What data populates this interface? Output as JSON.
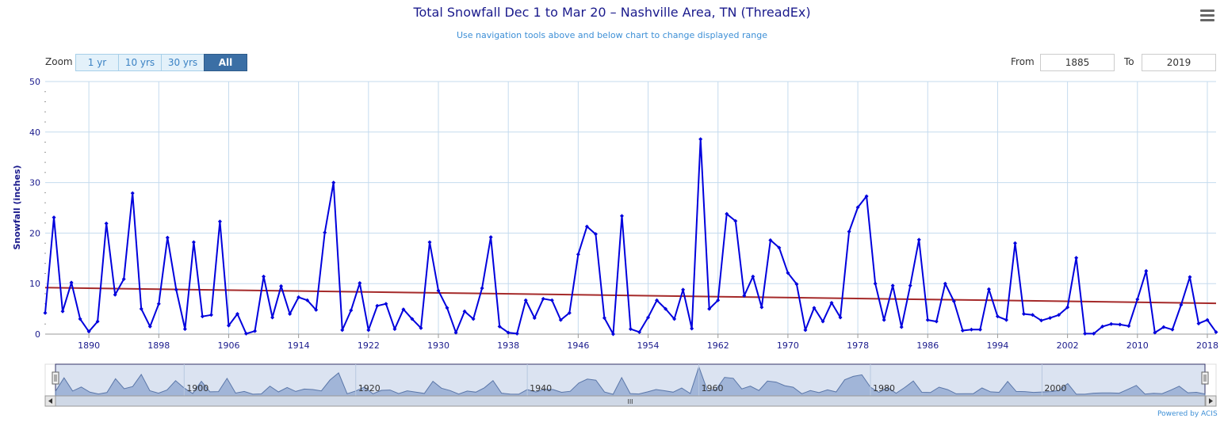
{
  "header": {
    "title": "Total Snowfall Dec 1 to Mar 20 – Nashville Area, TN (ThreadEx)",
    "subtitle": "Use navigation tools above and below chart to change displayed range",
    "menu_icon": "hamburger-menu-icon"
  },
  "zoom": {
    "label": "Zoom",
    "buttons": [
      "1 yr",
      "10 yrs",
      "30 yrs",
      "All"
    ],
    "active": "All"
  },
  "range": {
    "from_label": "From",
    "from_value": "1885",
    "to_label": "To",
    "to_value": "2019"
  },
  "navigator": {
    "labels": [
      "1900",
      "1920",
      "1940",
      "1960",
      "1980",
      "2000"
    ],
    "scrollbar_grip": "III"
  },
  "footer": {
    "credit": "Powered by ACIS"
  },
  "colors": {
    "series": "#0000dd",
    "trend": "#a52a2a",
    "grid": "#c5dbee",
    "navigator_fill": "#8da6cf"
  },
  "chart_data": {
    "type": "line",
    "title": "Total Snowfall Dec 1 to Mar 20 – Nashville Area, TN (ThreadEx)",
    "xlabel": "",
    "ylabel": "Snowfall (inches)",
    "xlim": [
      1885,
      2019
    ],
    "ylim": [
      0,
      50
    ],
    "yticks": [
      0,
      10,
      20,
      30,
      40,
      50
    ],
    "xticks": [
      1890,
      1898,
      1906,
      1914,
      1922,
      1930,
      1938,
      1946,
      1954,
      1962,
      1970,
      1978,
      1986,
      1994,
      2002,
      2010,
      2018
    ],
    "grid": true,
    "series": [
      {
        "type": "line",
        "x": [
          1885,
          1886,
          1887,
          1888,
          1889,
          1890,
          1891,
          1892,
          1893,
          1894,
          1895,
          1896,
          1897,
          1898,
          1899,
          1900,
          1901,
          1902,
          1903,
          1904,
          1905,
          1906,
          1907,
          1908,
          1909,
          1910,
          1911,
          1912,
          1913,
          1914,
          1915,
          1916,
          1917,
          1918,
          1919,
          1920,
          1921,
          1922,
          1923,
          1924,
          1925,
          1926,
          1927,
          1928,
          1929,
          1930,
          1931,
          1932,
          1933,
          1934,
          1935,
          1936,
          1937,
          1938,
          1939,
          1940,
          1941,
          1942,
          1943,
          1944,
          1945,
          1946,
          1947,
          1948,
          1949,
          1950,
          1951,
          1952,
          1953,
          1954,
          1955,
          1956,
          1957,
          1958,
          1959,
          1960,
          1961,
          1962,
          1963,
          1964,
          1965,
          1966,
          1967,
          1968,
          1969,
          1970,
          1971,
          1972,
          1973,
          1974,
          1975,
          1976,
          1977,
          1978,
          1979,
          1980,
          1981,
          1982,
          1983,
          1984,
          1985,
          1986,
          1987,
          1988,
          1989,
          1990,
          1991,
          1992,
          1993,
          1994,
          1995,
          1996,
          1997,
          1998,
          1999,
          2000,
          2001,
          2002,
          2003,
          2004,
          2005,
          2006,
          2007,
          2008,
          2009,
          2010,
          2011,
          2012,
          2013,
          2014,
          2015,
          2016,
          2017,
          2018,
          2019
        ],
        "values": [
          4.2,
          23.1,
          4.5,
          10.2,
          3.0,
          0.5,
          2.5,
          21.9,
          7.8,
          10.9,
          27.9,
          5.0,
          1.5,
          6.0,
          19.1,
          8.8,
          1.0,
          18.2,
          3.5,
          3.8,
          22.3,
          1.7,
          4.0,
          0.1,
          0.6,
          11.4,
          3.3,
          9.5,
          4.0,
          7.3,
          6.7,
          4.8,
          20.1,
          30.0,
          0.8,
          4.7,
          10.1,
          0.8,
          5.6,
          6.0,
          1.0,
          4.9,
          3.0,
          1.2,
          18.2,
          8.6,
          5.2,
          0.3,
          4.5,
          3.0,
          9.1,
          19.2,
          1.5,
          0.3,
          0.1,
          6.7,
          3.2,
          7.0,
          6.7,
          2.8,
          4.2,
          15.8,
          21.3,
          19.8,
          3.2,
          0.0,
          23.4,
          1.0,
          0.4,
          3.3,
          6.7,
          5.0,
          3.0,
          8.8,
          1.1,
          38.6,
          5.0,
          6.7,
          23.8,
          22.4,
          7.6,
          11.4,
          5.3,
          18.6,
          17.1,
          12.1,
          9.9,
          0.8,
          5.2,
          2.5,
          6.2,
          3.3,
          20.3,
          25.1,
          27.3,
          10.0,
          2.8,
          9.6,
          1.4,
          9.6,
          18.7,
          2.8,
          2.5,
          10.0,
          6.5,
          0.7,
          0.9,
          0.9,
          8.9,
          3.5,
          2.8,
          18.0,
          4.0,
          3.8,
          2.7,
          3.2,
          3.8,
          5.3,
          15.1,
          0.1,
          0.1,
          1.5,
          2.0,
          1.9,
          1.6,
          6.9,
          12.5,
          0.3,
          1.4,
          0.9,
          5.8,
          11.3,
          2.1,
          2.8,
          0.4
        ]
      },
      {
        "type": "line",
        "x": [
          1885,
          2019
        ],
        "values": [
          9.2,
          6.1
        ]
      }
    ]
  }
}
